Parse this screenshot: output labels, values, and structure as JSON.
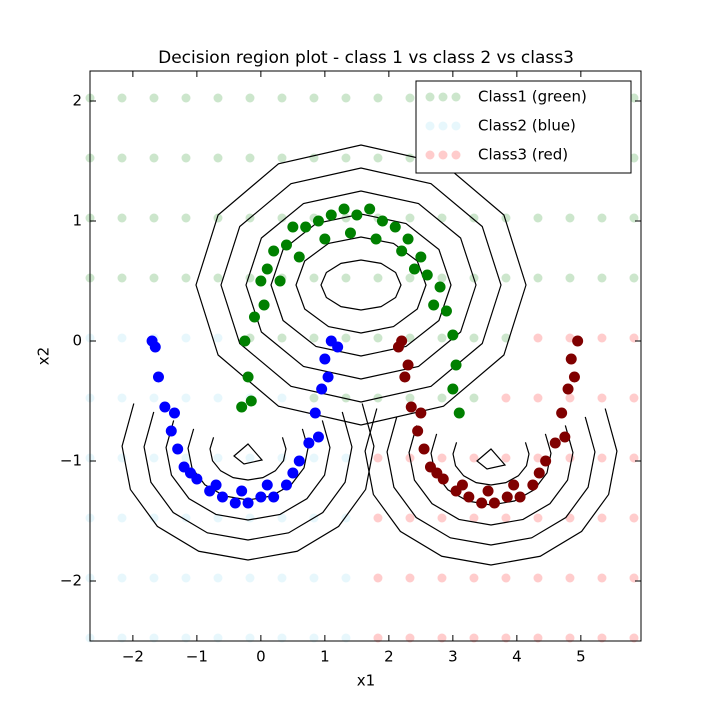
{
  "chart_data": {
    "type": "scatter",
    "title": "Decision region plot - class 1 vs class 2 vs class3",
    "x_label": "x1",
    "y_label": "x2",
    "xlim": [
      -2.67,
      5.94
    ],
    "ylim": [
      -2.5,
      2.25
    ],
    "xticks": [
      {
        "value": -2,
        "label": "−2"
      },
      {
        "value": -1,
        "label": "−1"
      },
      0,
      1,
      2,
      3,
      4,
      5
    ],
    "yticks": [
      {
        "value": -2,
        "label": "−2"
      },
      {
        "value": -1,
        "label": "−1"
      },
      0,
      1,
      2
    ],
    "legend": "upper right",
    "series": [
      {
        "name": "Class1 (green)",
        "color": "#008000",
        "opacity": 0.2,
        "x": [
          -2.67,
          -2.17,
          -1.67,
          -1.17,
          -0.67,
          -0.17,
          0.33,
          0.83,
          1.33,
          1.83,
          2.33,
          2.83,
          3.33,
          3.83,
          4.33,
          4.83,
          5.33,
          5.83,
          -2.67,
          -2.17,
          -1.67,
          -1.17,
          -0.67,
          -0.17,
          0.33,
          0.83,
          1.33,
          1.83,
          2.33,
          2.83,
          3.33,
          3.83,
          4.33,
          4.83,
          5.33,
          5.83,
          -2.67,
          -2.17,
          -1.67,
          -1.17,
          -0.67,
          -0.17,
          0.33,
          0.83,
          1.33,
          1.83,
          2.33,
          2.83,
          3.33,
          3.83,
          4.33,
          4.83,
          5.33,
          5.83,
          -2.67,
          -2.17,
          -1.67,
          -1.17,
          -0.67,
          -0.17,
          0.33,
          0.83,
          1.33,
          1.83,
          2.33,
          2.83,
          3.33,
          3.83,
          4.33,
          4.83,
          5.33,
          5.83,
          -0.17,
          0.33,
          0.83,
          1.33,
          1.83,
          2.33,
          2.83,
          3.33,
          3.83,
          0.83,
          1.33,
          1.83,
          2.33,
          2.83,
          3.33
        ],
        "y": [
          2.025,
          2.025,
          2.025,
          2.025,
          2.025,
          2.025,
          2.025,
          2.025,
          2.025,
          2.025,
          2.025,
          2.025,
          2.025,
          2.025,
          2.025,
          2.025,
          2.025,
          2.025,
          1.525,
          1.525,
          1.525,
          1.525,
          1.525,
          1.525,
          1.525,
          1.525,
          1.525,
          1.525,
          1.525,
          1.525,
          1.525,
          1.525,
          1.525,
          1.525,
          1.525,
          1.525,
          1.025,
          1.025,
          1.025,
          1.025,
          1.025,
          1.025,
          1.025,
          1.025,
          1.025,
          1.025,
          1.025,
          1.025,
          1.025,
          1.025,
          1.025,
          1.025,
          1.025,
          1.025,
          0.525,
          0.525,
          0.525,
          0.525,
          0.525,
          0.525,
          0.525,
          0.525,
          0.525,
          0.525,
          0.525,
          0.525,
          0.525,
          0.525,
          0.525,
          0.525,
          0.525,
          0.525,
          0.025,
          0.025,
          0.025,
          0.025,
          0.025,
          0.025,
          0.025,
          0.025,
          0.025,
          -0.475,
          -0.475,
          -0.475,
          -0.475,
          -0.475,
          -0.475
        ]
      },
      {
        "name": "Class2 (blue)",
        "color": "#5bc8e8",
        "opacity": 0.15,
        "x": [
          -2.67,
          -2.17,
          -1.67,
          -1.17,
          -0.67,
          -2.67,
          -2.17,
          -1.67,
          -1.17,
          -0.67,
          -0.17,
          0.33,
          -2.67,
          -2.17,
          -1.67,
          -1.17,
          -0.67,
          -0.17,
          0.33,
          0.83,
          1.33,
          -2.67,
          -2.17,
          -1.67,
          -1.17,
          -0.67,
          -0.17,
          0.33,
          0.83,
          1.33,
          -2.67,
          -2.17,
          -1.67,
          -1.17,
          -0.67,
          -0.17,
          0.33,
          0.83,
          1.33,
          -2.67,
          -2.17,
          -1.67,
          -1.17,
          -0.67,
          -0.17,
          0.33,
          0.83,
          1.33
        ],
        "y": [
          0.025,
          0.025,
          0.025,
          0.025,
          0.025,
          -0.475,
          -0.475,
          -0.475,
          -0.475,
          -0.475,
          -0.475,
          -0.475,
          -0.975,
          -0.975,
          -0.975,
          -0.975,
          -0.975,
          -0.975,
          -0.975,
          -0.975,
          -0.975,
          -1.475,
          -1.475,
          -1.475,
          -1.475,
          -1.475,
          -1.475,
          -1.475,
          -1.475,
          -1.475,
          -1.975,
          -1.975,
          -1.975,
          -1.975,
          -1.975,
          -1.975,
          -1.975,
          -1.975,
          -1.975,
          -2.475,
          -2.475,
          -2.475,
          -2.475,
          -2.475,
          -2.475,
          -2.475,
          -2.475,
          -2.475
        ]
      },
      {
        "name": "Class3 (red)",
        "color": "#ff0000",
        "opacity": 0.2,
        "x": [
          4.33,
          4.83,
          5.33,
          5.83,
          3.83,
          4.33,
          4.83,
          5.33,
          5.83,
          1.83,
          2.33,
          2.83,
          3.33,
          3.83,
          4.33,
          4.83,
          5.33,
          5.83,
          1.83,
          2.33,
          2.83,
          3.33,
          3.83,
          4.33,
          4.83,
          5.33,
          5.83,
          1.83,
          2.33,
          2.83,
          3.33,
          3.83,
          4.33,
          4.83,
          5.33,
          5.83,
          1.83,
          2.33,
          2.83,
          3.33,
          3.83,
          4.33,
          4.83,
          5.33,
          5.83
        ],
        "y": [
          0.025,
          0.025,
          0.025,
          0.025,
          -0.475,
          -0.475,
          -0.475,
          -0.475,
          -0.475,
          -0.975,
          -0.975,
          -0.975,
          -0.975,
          -0.975,
          -0.975,
          -0.975,
          -0.975,
          -0.975,
          -1.475,
          -1.475,
          -1.475,
          -1.475,
          -1.475,
          -1.475,
          -1.475,
          -1.475,
          -1.475,
          -1.975,
          -1.975,
          -1.975,
          -1.975,
          -1.975,
          -1.975,
          -1.975,
          -1.975,
          -1.975,
          -2.475,
          -2.475,
          -2.475,
          -2.475,
          -2.475,
          -2.475,
          -2.475,
          -2.475,
          -2.475
        ]
      }
    ],
    "samples": [
      {
        "color": "#008000",
        "x": [
          -0.3,
          -0.2,
          -0.25,
          -0.1,
          0.0,
          0.1,
          0.2,
          0.4,
          0.5,
          0.7,
          0.9,
          1.1,
          1.3,
          1.5,
          1.7,
          1.9,
          2.1,
          2.3,
          2.5,
          2.6,
          2.8,
          2.9,
          3.0,
          3.05,
          3.0,
          3.1,
          0.3,
          0.6,
          1.0,
          1.4,
          1.8,
          2.2,
          2.7,
          -0.15,
          0.05,
          2.4
        ],
        "y": [
          -0.55,
          -0.3,
          0.0,
          0.2,
          0.5,
          0.6,
          0.75,
          0.8,
          0.95,
          0.95,
          1.0,
          1.05,
          1.1,
          1.05,
          1.1,
          1.0,
          0.95,
          0.85,
          0.7,
          0.55,
          0.45,
          0.25,
          0.05,
          -0.2,
          -0.4,
          -0.6,
          0.5,
          0.7,
          0.85,
          0.9,
          0.85,
          0.75,
          0.3,
          -0.5,
          0.3,
          0.6
        ]
      },
      {
        "color": "#0000ff",
        "x": [
          -1.65,
          -1.6,
          -1.5,
          -1.4,
          -1.3,
          -1.2,
          -1.0,
          -0.8,
          -0.6,
          -0.4,
          -0.2,
          0.0,
          0.2,
          0.4,
          0.6,
          0.75,
          0.85,
          0.95,
          1.0,
          1.1,
          1.2,
          -1.7,
          -1.35,
          -1.1,
          -0.7,
          -0.3,
          0.1,
          0.5,
          0.9,
          1.05
        ],
        "y": [
          -0.05,
          -0.3,
          -0.55,
          -0.75,
          -0.9,
          -1.05,
          -1.15,
          -1.25,
          -1.3,
          -1.35,
          -1.35,
          -1.3,
          -1.3,
          -1.2,
          -1.0,
          -0.85,
          -0.6,
          -0.4,
          -0.15,
          0.0,
          -0.05,
          0.0,
          -0.6,
          -1.1,
          -1.2,
          -1.25,
          -1.2,
          -1.1,
          -0.8,
          -0.3
        ]
      },
      {
        "color": "#800000",
        "x": [
          2.2,
          2.25,
          2.35,
          2.45,
          2.55,
          2.65,
          2.85,
          3.05,
          3.25,
          3.45,
          3.65,
          3.85,
          4.05,
          4.25,
          4.45,
          4.6,
          4.7,
          4.8,
          4.85,
          4.95,
          2.15,
          2.5,
          2.75,
          3.15,
          3.55,
          3.95,
          4.35,
          4.75,
          4.9,
          2.3
        ],
        "y": [
          0.0,
          -0.3,
          -0.55,
          -0.75,
          -0.9,
          -1.05,
          -1.15,
          -1.25,
          -1.3,
          -1.35,
          -1.35,
          -1.3,
          -1.3,
          -1.2,
          -1.0,
          -0.85,
          -0.6,
          -0.4,
          -0.15,
          0.0,
          -0.05,
          -0.6,
          -1.1,
          -1.2,
          -1.25,
          -1.2,
          -1.1,
          -0.8,
          -0.3,
          -0.2
        ]
      }
    ]
  }
}
